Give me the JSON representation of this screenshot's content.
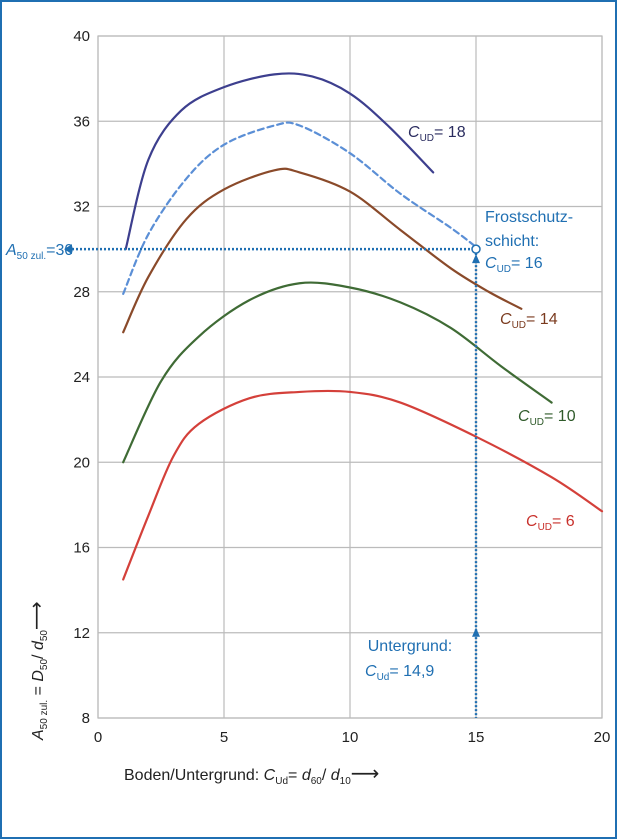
{
  "chart_data": {
    "type": "line",
    "xlabel": "Boden/Untergrund: C_Ud = d_60/d_10",
    "ylabel": "A_50 zul. = D_50/d_50",
    "xlim": [
      0,
      20
    ],
    "ylim": [
      8,
      40
    ],
    "x_ticks": [
      "0",
      "5",
      "10",
      "15",
      "20"
    ],
    "y_ticks": [
      "8",
      "12",
      "16",
      "20",
      "24",
      "28",
      "32",
      "36",
      "40"
    ],
    "grid": true,
    "series": [
      {
        "name": "C_UD = 18",
        "color": "#3d3f8e",
        "style": "solid",
        "x": [
          1.1,
          2,
          3.3,
          5,
          7,
          8.5,
          10,
          11.5,
          13.3
        ],
        "y": [
          30,
          34.2,
          36.5,
          37.6,
          38.2,
          38.1,
          37.3,
          35.8,
          33.6
        ]
      },
      {
        "name": "Frostschutzschicht: C_UD = 16",
        "color": "#5b8fd6",
        "style": "dashed",
        "x": [
          1,
          2,
          3.5,
          5,
          7,
          8,
          10,
          12,
          14,
          15
        ],
        "y": [
          27.9,
          30.7,
          33.3,
          34.9,
          35.8,
          35.8,
          34.5,
          32.6,
          31,
          30.1
        ]
      },
      {
        "name": "C_UD = 14",
        "color": "#8a4a2a",
        "style": "solid",
        "x": [
          1,
          2,
          3.5,
          5,
          7,
          8,
          10,
          12,
          14,
          15.5,
          16.8
        ],
        "y": [
          26.1,
          28.7,
          31.4,
          32.8,
          33.7,
          33.6,
          32.7,
          30.9,
          29.1,
          28,
          27.2
        ]
      },
      {
        "name": "C_UD = 10",
        "color": "#3f6b35",
        "style": "solid",
        "x": [
          1,
          2.5,
          4,
          6,
          8,
          10,
          12,
          14,
          16,
          18
        ],
        "y": [
          20,
          23.8,
          25.9,
          27.6,
          28.4,
          28.2,
          27.5,
          26.3,
          24.5,
          22.8
        ]
      },
      {
        "name": "C_UD = 6",
        "color": "#d4403a",
        "style": "solid",
        "x": [
          1,
          2,
          3,
          4,
          6,
          8,
          10,
          12,
          15,
          18,
          20
        ],
        "y": [
          14.5,
          17.5,
          20.3,
          21.8,
          23,
          23.3,
          23.3,
          22.8,
          21.2,
          19.3,
          17.7
        ]
      }
    ],
    "annotations": {
      "a50_label": "=30",
      "a50_value": 30,
      "frost_title_1": "Frostschutz-",
      "frost_title_2": "schicht:",
      "frost_value": "= 16",
      "untergrund_title": "Untergrund:",
      "untergrund_value": "= 14,9",
      "cud_18": "= 18",
      "cud_14": "= 14",
      "cud_10": "= 10",
      "cud_6": "= 6",
      "marker_x": 15,
      "marker_y_top": 30,
      "marker_y_bottom": 12
    }
  },
  "colors": {
    "annotation_blue": "#1f6fb2",
    "grid": "#bbbbbb",
    "frame": "#1f6fb2"
  }
}
